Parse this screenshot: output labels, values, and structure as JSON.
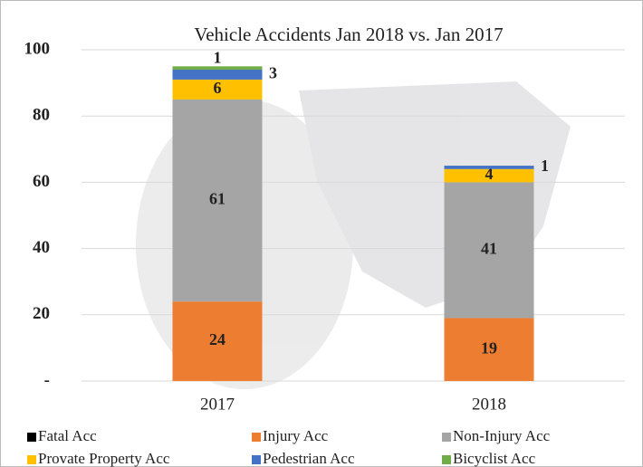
{
  "chart_data": {
    "type": "stacked_bar",
    "title": "Vehicle  Accidents Jan 2018  vs. Jan 2017",
    "categories": [
      "2017",
      "2018"
    ],
    "series": [
      {
        "name": "Fatal Acc",
        "color": "#000000",
        "values": [
          0,
          0
        ]
      },
      {
        "name": "Injury Acc",
        "color": "#ed7d31",
        "values": [
          24,
          19
        ]
      },
      {
        "name": "Non-Injury Acc",
        "color": "#a5a5a5",
        "values": [
          61,
          41
        ]
      },
      {
        "name": "Provate Property Acc",
        "color": "#ffc000",
        "values": [
          6,
          4
        ]
      },
      {
        "name": "Pedestrian Acc",
        "color": "#4472c4",
        "values": [
          3,
          1
        ]
      },
      {
        "name": "Bicyclist Acc",
        "color": "#70ad47",
        "values": [
          1,
          0
        ]
      }
    ],
    "ylim": [
      0,
      100
    ],
    "yticks": [
      {
        "value": 0,
        "label": "-"
      },
      20,
      40,
      60,
      80,
      100
    ],
    "grid": true
  }
}
